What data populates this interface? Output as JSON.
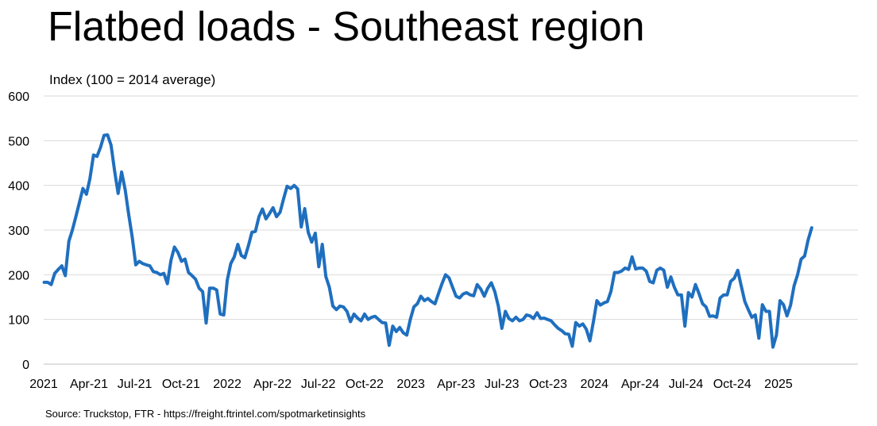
{
  "title": "Flatbed loads - Southeast region",
  "source": "Source: Truckstop, FTR - https://freight.ftrintel.com/spotmarketinsights",
  "chart_data": {
    "type": "line",
    "title": "Flatbed loads - Southeast region",
    "ylabel": "Index (100 = 2014 average)",
    "xlabel": "",
    "ylim": [
      0,
      600
    ],
    "yticks": [
      0,
      100,
      200,
      300,
      400,
      500,
      600
    ],
    "xlim": [
      "2021-01-01",
      "2025-06-08"
    ],
    "xticks": [
      {
        "date": "2021-01-01",
        "label": "2021"
      },
      {
        "date": "2021-04-01",
        "label": "Apr-21"
      },
      {
        "date": "2021-07-01",
        "label": "Jul-21"
      },
      {
        "date": "2021-10-01",
        "label": "Oct-21"
      },
      {
        "date": "2022-01-01",
        "label": "2022"
      },
      {
        "date": "2022-04-01",
        "label": "Apr-22"
      },
      {
        "date": "2022-07-01",
        "label": "Jul-22"
      },
      {
        "date": "2022-10-01",
        "label": "Oct-22"
      },
      {
        "date": "2023-01-01",
        "label": "2023"
      },
      {
        "date": "2023-04-01",
        "label": "Apr-23"
      },
      {
        "date": "2023-07-01",
        "label": "Jul-23"
      },
      {
        "date": "2023-10-01",
        "label": "Oct-23"
      },
      {
        "date": "2024-01-01",
        "label": "2024"
      },
      {
        "date": "2024-04-01",
        "label": "Apr-24"
      },
      {
        "date": "2024-07-01",
        "label": "Jul-24"
      },
      {
        "date": "2024-10-01",
        "label": "Oct-24"
      },
      {
        "date": "2025-01-01",
        "label": "2025"
      }
    ],
    "grid": true,
    "series": [
      {
        "color": "#1f6fbf",
        "points": [
          [
            "2021-01-02",
            183
          ],
          [
            "2021-01-09",
            183
          ],
          [
            "2021-01-16",
            178
          ],
          [
            "2021-01-23",
            203
          ],
          [
            "2021-01-30",
            212
          ],
          [
            "2021-02-06",
            220
          ],
          [
            "2021-02-13",
            198
          ],
          [
            "2021-02-20",
            275
          ],
          [
            "2021-02-27",
            300
          ],
          [
            "2021-03-06",
            330
          ],
          [
            "2021-03-13",
            362
          ],
          [
            "2021-03-20",
            393
          ],
          [
            "2021-03-27",
            380
          ],
          [
            "2021-04-03",
            415
          ],
          [
            "2021-04-10",
            468
          ],
          [
            "2021-04-17",
            465
          ],
          [
            "2021-04-24",
            485
          ],
          [
            "2021-05-01",
            512
          ],
          [
            "2021-05-08",
            513
          ],
          [
            "2021-05-15",
            490
          ],
          [
            "2021-05-22",
            432
          ],
          [
            "2021-05-29",
            382
          ],
          [
            "2021-06-05",
            430
          ],
          [
            "2021-06-12",
            390
          ],
          [
            "2021-06-19",
            335
          ],
          [
            "2021-06-26",
            285
          ],
          [
            "2021-07-03",
            222
          ],
          [
            "2021-07-10",
            230
          ],
          [
            "2021-07-17",
            225
          ],
          [
            "2021-07-24",
            222
          ],
          [
            "2021-07-31",
            220
          ],
          [
            "2021-08-07",
            207
          ],
          [
            "2021-08-14",
            205
          ],
          [
            "2021-08-21",
            200
          ],
          [
            "2021-08-28",
            203
          ],
          [
            "2021-09-04",
            180
          ],
          [
            "2021-09-11",
            232
          ],
          [
            "2021-09-18",
            262
          ],
          [
            "2021-09-25",
            250
          ],
          [
            "2021-10-02",
            230
          ],
          [
            "2021-10-09",
            235
          ],
          [
            "2021-10-16",
            205
          ],
          [
            "2021-10-23",
            198
          ],
          [
            "2021-10-30",
            190
          ],
          [
            "2021-11-06",
            170
          ],
          [
            "2021-11-13",
            162
          ],
          [
            "2021-11-20",
            92
          ],
          [
            "2021-11-27",
            170
          ],
          [
            "2021-12-04",
            170
          ],
          [
            "2021-12-11",
            166
          ],
          [
            "2021-12-18",
            112
          ],
          [
            "2021-12-25",
            110
          ],
          [
            "2022-01-01",
            188
          ],
          [
            "2022-01-08",
            225
          ],
          [
            "2022-01-15",
            240
          ],
          [
            "2022-01-22",
            268
          ],
          [
            "2022-01-29",
            243
          ],
          [
            "2022-02-05",
            238
          ],
          [
            "2022-02-12",
            265
          ],
          [
            "2022-02-19",
            295
          ],
          [
            "2022-02-26",
            297
          ],
          [
            "2022-03-05",
            330
          ],
          [
            "2022-03-12",
            347
          ],
          [
            "2022-03-19",
            325
          ],
          [
            "2022-03-26",
            337
          ],
          [
            "2022-04-02",
            350
          ],
          [
            "2022-04-09",
            330
          ],
          [
            "2022-04-16",
            340
          ],
          [
            "2022-04-23",
            370
          ],
          [
            "2022-04-30",
            398
          ],
          [
            "2022-05-07",
            393
          ],
          [
            "2022-05-14",
            400
          ],
          [
            "2022-05-21",
            392
          ],
          [
            "2022-05-28",
            307
          ],
          [
            "2022-06-04",
            348
          ],
          [
            "2022-06-11",
            295
          ],
          [
            "2022-06-18",
            273
          ],
          [
            "2022-06-25",
            293
          ],
          [
            "2022-07-02",
            218
          ],
          [
            "2022-07-09",
            268
          ],
          [
            "2022-07-16",
            196
          ],
          [
            "2022-07-23",
            172
          ],
          [
            "2022-07-30",
            130
          ],
          [
            "2022-08-06",
            122
          ],
          [
            "2022-08-13",
            130
          ],
          [
            "2022-08-20",
            128
          ],
          [
            "2022-08-27",
            118
          ],
          [
            "2022-09-03",
            95
          ],
          [
            "2022-09-10",
            112
          ],
          [
            "2022-09-17",
            103
          ],
          [
            "2022-09-24",
            97
          ],
          [
            "2022-10-01",
            112
          ],
          [
            "2022-10-08",
            100
          ],
          [
            "2022-10-15",
            105
          ],
          [
            "2022-10-22",
            107
          ],
          [
            "2022-10-29",
            100
          ],
          [
            "2022-11-05",
            93
          ],
          [
            "2022-11-12",
            92
          ],
          [
            "2022-11-19",
            42
          ],
          [
            "2022-11-26",
            85
          ],
          [
            "2022-12-03",
            73
          ],
          [
            "2022-12-10",
            82
          ],
          [
            "2022-12-17",
            70
          ],
          [
            "2022-12-24",
            65
          ],
          [
            "2022-12-31",
            100
          ],
          [
            "2023-01-07",
            128
          ],
          [
            "2023-01-14",
            135
          ],
          [
            "2023-01-21",
            152
          ],
          [
            "2023-01-28",
            142
          ],
          [
            "2023-02-04",
            147
          ],
          [
            "2023-02-11",
            140
          ],
          [
            "2023-02-18",
            135
          ],
          [
            "2023-02-25",
            158
          ],
          [
            "2023-03-04",
            180
          ],
          [
            "2023-03-11",
            200
          ],
          [
            "2023-03-18",
            193
          ],
          [
            "2023-03-25",
            172
          ],
          [
            "2023-04-01",
            152
          ],
          [
            "2023-04-08",
            148
          ],
          [
            "2023-04-15",
            157
          ],
          [
            "2023-04-22",
            160
          ],
          [
            "2023-04-29",
            155
          ],
          [
            "2023-05-06",
            153
          ],
          [
            "2023-05-13",
            178
          ],
          [
            "2023-05-20",
            168
          ],
          [
            "2023-05-27",
            152
          ],
          [
            "2023-06-03",
            170
          ],
          [
            "2023-06-10",
            182
          ],
          [
            "2023-06-17",
            162
          ],
          [
            "2023-06-24",
            130
          ],
          [
            "2023-07-01",
            80
          ],
          [
            "2023-07-08",
            118
          ],
          [
            "2023-07-15",
            102
          ],
          [
            "2023-07-22",
            97
          ],
          [
            "2023-07-29",
            105
          ],
          [
            "2023-08-05",
            97
          ],
          [
            "2023-08-12",
            100
          ],
          [
            "2023-08-19",
            110
          ],
          [
            "2023-08-26",
            108
          ],
          [
            "2023-09-02",
            102
          ],
          [
            "2023-09-09",
            115
          ],
          [
            "2023-09-16",
            102
          ],
          [
            "2023-09-23",
            103
          ],
          [
            "2023-09-30",
            100
          ],
          [
            "2023-10-07",
            97
          ],
          [
            "2023-10-14",
            88
          ],
          [
            "2023-10-21",
            80
          ],
          [
            "2023-10-28",
            75
          ],
          [
            "2023-11-04",
            68
          ],
          [
            "2023-11-11",
            67
          ],
          [
            "2023-11-18",
            40
          ],
          [
            "2023-11-25",
            93
          ],
          [
            "2023-12-02",
            85
          ],
          [
            "2023-12-09",
            90
          ],
          [
            "2023-12-16",
            78
          ],
          [
            "2023-12-23",
            52
          ],
          [
            "2023-12-30",
            95
          ],
          [
            "2024-01-06",
            142
          ],
          [
            "2024-01-13",
            132
          ],
          [
            "2024-01-20",
            137
          ],
          [
            "2024-01-27",
            140
          ],
          [
            "2024-02-03",
            163
          ],
          [
            "2024-02-10",
            205
          ],
          [
            "2024-02-17",
            205
          ],
          [
            "2024-02-24",
            208
          ],
          [
            "2024-03-02",
            215
          ],
          [
            "2024-03-09",
            212
          ],
          [
            "2024-03-16",
            240
          ],
          [
            "2024-03-23",
            213
          ],
          [
            "2024-03-30",
            215
          ],
          [
            "2024-04-06",
            215
          ],
          [
            "2024-04-13",
            208
          ],
          [
            "2024-04-20",
            185
          ],
          [
            "2024-04-27",
            182
          ],
          [
            "2024-05-04",
            210
          ],
          [
            "2024-05-11",
            215
          ],
          [
            "2024-05-18",
            210
          ],
          [
            "2024-05-25",
            172
          ],
          [
            "2024-06-01",
            195
          ],
          [
            "2024-06-08",
            172
          ],
          [
            "2024-06-15",
            155
          ],
          [
            "2024-06-22",
            155
          ],
          [
            "2024-06-29",
            85
          ],
          [
            "2024-07-06",
            160
          ],
          [
            "2024-07-13",
            150
          ],
          [
            "2024-07-20",
            178
          ],
          [
            "2024-07-27",
            158
          ],
          [
            "2024-08-03",
            135
          ],
          [
            "2024-08-10",
            128
          ],
          [
            "2024-08-17",
            107
          ],
          [
            "2024-08-24",
            108
          ],
          [
            "2024-08-31",
            105
          ],
          [
            "2024-09-07",
            148
          ],
          [
            "2024-09-14",
            155
          ],
          [
            "2024-09-21",
            155
          ],
          [
            "2024-09-28",
            185
          ],
          [
            "2024-10-05",
            192
          ],
          [
            "2024-10-12",
            210
          ],
          [
            "2024-10-19",
            175
          ],
          [
            "2024-10-26",
            140
          ],
          [
            "2024-11-02",
            122
          ],
          [
            "2024-11-09",
            105
          ],
          [
            "2024-11-16",
            110
          ],
          [
            "2024-11-23",
            58
          ],
          [
            "2024-11-30",
            133
          ],
          [
            "2024-12-07",
            118
          ],
          [
            "2024-12-14",
            118
          ],
          [
            "2024-12-21",
            38
          ],
          [
            "2024-12-28",
            65
          ],
          [
            "2025-01-04",
            142
          ],
          [
            "2025-01-11",
            133
          ],
          [
            "2025-01-18",
            108
          ],
          [
            "2025-01-25",
            132
          ],
          [
            "2025-02-01",
            175
          ],
          [
            "2025-02-08",
            200
          ],
          [
            "2025-02-15",
            235
          ],
          [
            "2025-02-22",
            242
          ],
          [
            "2025-03-01",
            278
          ],
          [
            "2025-03-08",
            305
          ]
        ]
      }
    ]
  }
}
